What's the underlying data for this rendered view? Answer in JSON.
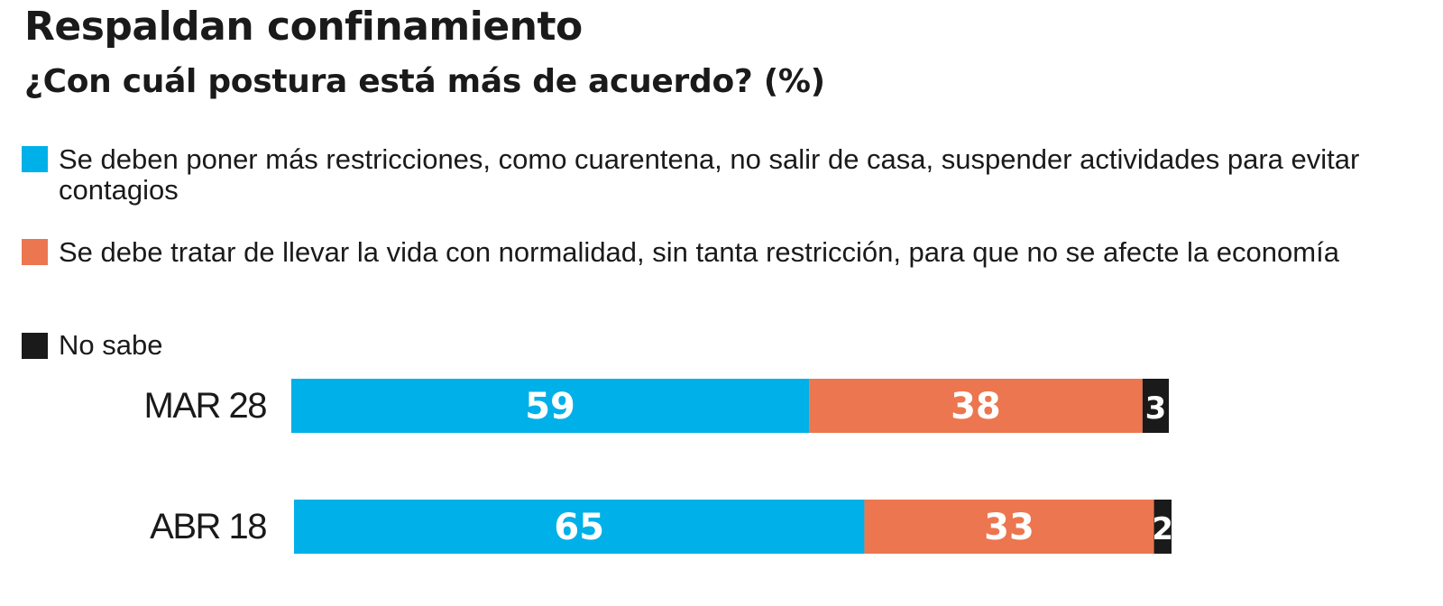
{
  "title": "Respaldan confinamiento",
  "subtitle": "¿Con cuál postura está más de acuerdo?  (%)",
  "legend": [
    {
      "label": "Se deben poner más restricciones, como cuarentena, no salir de casa, suspender actividades para evitar contagios",
      "color": "#00b0e8"
    },
    {
      "label": "Se debe tratar de llevar la vida con normalidad, sin tanta restricción, para que no se afecte la economía",
      "color": "#ec764f"
    },
    {
      "label": "No sabe",
      "color": "#1a1a1a"
    }
  ],
  "chart_data": {
    "type": "bar",
    "orientation": "horizontal",
    "stacked": true,
    "categories": [
      "MAR 28",
      "ABR 18"
    ],
    "series": [
      {
        "name": "Se deben poner más restricciones, como cuarentena, no salir de casa, suspender actividades para evitar contagios",
        "values": [
          59,
          65
        ],
        "color": "#00b0e8"
      },
      {
        "name": "Se debe tratar de llevar la vida con normalidad, sin tanta restricción, para que no se afecte la economía",
        "values": [
          38,
          33
        ],
        "color": "#ec764f"
      },
      {
        "name": "No sabe",
        "values": [
          3,
          2
        ],
        "color": "#1a1a1a"
      }
    ],
    "title": "Respaldan confinamiento",
    "subtitle": "¿Con cuál postura está más de acuerdo?  (%)",
    "xlim": [
      0,
      100
    ],
    "grid": false,
    "legend_position": "top"
  }
}
